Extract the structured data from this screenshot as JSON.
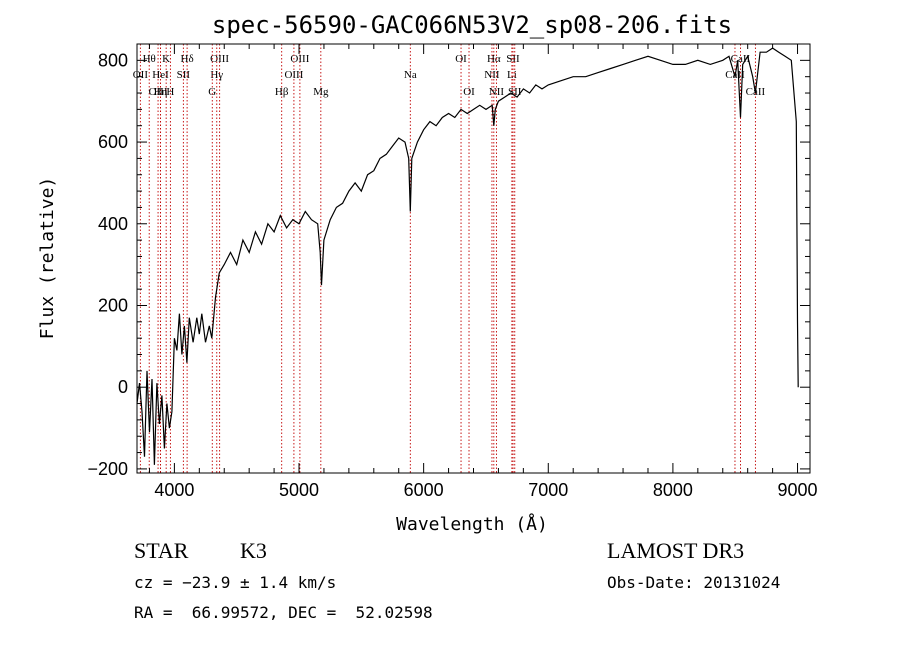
{
  "chart_data": {
    "type": "line",
    "title": "spec-56590-GAC066N53V2_sp08-206.fits",
    "xlabel": "Wavelength (Å)",
    "ylabel": "Flux (relative)",
    "xlim": [
      3700,
      9100
    ],
    "ylim": [
      -210,
      840
    ],
    "x_ticks": [
      4000,
      5000,
      6000,
      7000,
      8000,
      9000
    ],
    "y_ticks": [
      -200,
      0,
      200,
      400,
      600,
      800
    ],
    "grid": false,
    "series": [
      {
        "points": [
          [
            3700,
            -40
          ],
          [
            3720,
            10
          ],
          [
            3740,
            -60
          ],
          [
            3760,
            -170
          ],
          [
            3780,
            40
          ],
          [
            3800,
            -110
          ],
          [
            3820,
            20
          ],
          [
            3840,
            -190
          ],
          [
            3860,
            10
          ],
          [
            3880,
            -90
          ],
          [
            3900,
            -20
          ],
          [
            3920,
            -150
          ],
          [
            3940,
            -40
          ],
          [
            3960,
            -100
          ],
          [
            3980,
            -60
          ],
          [
            4000,
            120
          ],
          [
            4020,
            90
          ],
          [
            4040,
            180
          ],
          [
            4060,
            80
          ],
          [
            4080,
            150
          ],
          [
            4100,
            60
          ],
          [
            4120,
            170
          ],
          [
            4150,
            110
          ],
          [
            4180,
            170
          ],
          [
            4200,
            130
          ],
          [
            4220,
            180
          ],
          [
            4250,
            110
          ],
          [
            4280,
            150
          ],
          [
            4300,
            120
          ],
          [
            4330,
            220
          ],
          [
            4360,
            280
          ],
          [
            4400,
            300
          ],
          [
            4450,
            330
          ],
          [
            4500,
            300
          ],
          [
            4550,
            360
          ],
          [
            4600,
            330
          ],
          [
            4650,
            380
          ],
          [
            4700,
            350
          ],
          [
            4750,
            400
          ],
          [
            4800,
            380
          ],
          [
            4850,
            420
          ],
          [
            4900,
            390
          ],
          [
            4950,
            410
          ],
          [
            5000,
            400
          ],
          [
            5050,
            430
          ],
          [
            5100,
            410
          ],
          [
            5150,
            400
          ],
          [
            5170,
            330
          ],
          [
            5180,
            250
          ],
          [
            5200,
            360
          ],
          [
            5250,
            410
          ],
          [
            5300,
            440
          ],
          [
            5350,
            450
          ],
          [
            5400,
            480
          ],
          [
            5450,
            500
          ],
          [
            5500,
            480
          ],
          [
            5550,
            520
          ],
          [
            5600,
            530
          ],
          [
            5650,
            560
          ],
          [
            5700,
            570
          ],
          [
            5750,
            590
          ],
          [
            5800,
            610
          ],
          [
            5850,
            600
          ],
          [
            5880,
            560
          ],
          [
            5893,
            430
          ],
          [
            5905,
            560
          ],
          [
            5950,
            600
          ],
          [
            6000,
            630
          ],
          [
            6050,
            650
          ],
          [
            6100,
            640
          ],
          [
            6150,
            660
          ],
          [
            6200,
            670
          ],
          [
            6250,
            660
          ],
          [
            6300,
            680
          ],
          [
            6350,
            670
          ],
          [
            6400,
            680
          ],
          [
            6450,
            690
          ],
          [
            6500,
            680
          ],
          [
            6550,
            690
          ],
          [
            6563,
            640
          ],
          [
            6575,
            680
          ],
          [
            6600,
            700
          ],
          [
            6650,
            710
          ],
          [
            6700,
            720
          ],
          [
            6750,
            710
          ],
          [
            6800,
            730
          ],
          [
            6850,
            720
          ],
          [
            6900,
            740
          ],
          [
            6950,
            730
          ],
          [
            7000,
            740
          ],
          [
            7100,
            750
          ],
          [
            7200,
            760
          ],
          [
            7300,
            760
          ],
          [
            7400,
            770
          ],
          [
            7500,
            780
          ],
          [
            7600,
            790
          ],
          [
            7700,
            800
          ],
          [
            7800,
            810
          ],
          [
            7900,
            800
          ],
          [
            8000,
            790
          ],
          [
            8100,
            790
          ],
          [
            8200,
            800
          ],
          [
            8300,
            790
          ],
          [
            8400,
            800
          ],
          [
            8450,
            810
          ],
          [
            8498,
            760
          ],
          [
            8520,
            800
          ],
          [
            8542,
            660
          ],
          [
            8560,
            790
          ],
          [
            8600,
            810
          ],
          [
            8640,
            760
          ],
          [
            8662,
            720
          ],
          [
            8700,
            820
          ],
          [
            8750,
            820
          ],
          [
            8800,
            830
          ],
          [
            8850,
            820
          ],
          [
            8900,
            810
          ],
          [
            8950,
            800
          ],
          [
            8990,
            650
          ],
          [
            9000,
            160
          ],
          [
            9005,
            0
          ]
        ]
      }
    ],
    "line_markers": [
      {
        "label": "Hθ",
        "x": 3798,
        "row": 0
      },
      {
        "label": "OII",
        "x": 3727,
        "row": 1
      },
      {
        "label": "OIII",
        "x": 3869,
        "row": 2
      },
      {
        "label": "HeI",
        "x": 3889,
        "row": 1
      },
      {
        "label": "K",
        "x": 3934,
        "row": 0
      },
      {
        "label": "Hη",
        "x": 3889,
        "row": 2
      },
      {
        "label": "H",
        "x": 3968,
        "row": 2
      },
      {
        "label": "SII",
        "x": 4072,
        "row": 1
      },
      {
        "label": "Hδ",
        "x": 4102,
        "row": 0
      },
      {
        "label": "OIII",
        "x": 4363,
        "row": 0
      },
      {
        "label": "Hγ",
        "x": 4340,
        "row": 1
      },
      {
        "label": "G",
        "x": 4304,
        "row": 2
      },
      {
        "label": "Hβ",
        "x": 4861,
        "row": 2
      },
      {
        "label": "OIII",
        "x": 5007,
        "row": 0
      },
      {
        "label": "OIII",
        "x": 4959,
        "row": 1
      },
      {
        "label": "Mg",
        "x": 5175,
        "row": 2
      },
      {
        "label": "Na",
        "x": 5893,
        "row": 1
      },
      {
        "label": "OI",
        "x": 6300,
        "row": 0
      },
      {
        "label": "OI",
        "x": 6364,
        "row": 2
      },
      {
        "label": "Hα",
        "x": 6563,
        "row": 0
      },
      {
        "label": "SII",
        "x": 6717,
        "row": 0
      },
      {
        "label": "NII",
        "x": 6548,
        "row": 1
      },
      {
        "label": "Li",
        "x": 6708,
        "row": 1
      },
      {
        "label": "NII",
        "x": 6584,
        "row": 2
      },
      {
        "label": "SII",
        "x": 6731,
        "row": 2
      },
      {
        "label": "CaII",
        "x": 8542,
        "row": 0
      },
      {
        "label": "CaII",
        "x": 8498,
        "row": 1
      },
      {
        "label": "CaII",
        "x": 8662,
        "row": 2
      }
    ],
    "colors": {
      "spectrum": "#000000",
      "marker_lines": "#c00000",
      "axes": "#000000"
    }
  },
  "info": {
    "class_label": "STAR",
    "subclass": "K3",
    "survey": "LAMOST DR3",
    "redshift_line": "cz = −23.9 ± 1.4 km/s",
    "obs_date": "Obs-Date: 20131024",
    "coords_line": "RA =  66.99572, DEC =  52.02598"
  }
}
